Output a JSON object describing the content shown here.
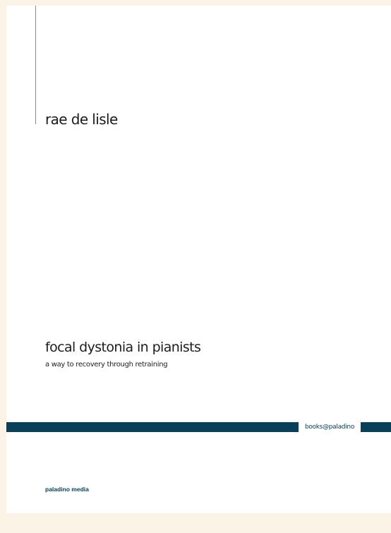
{
  "cover": {
    "author": "rae de lisle",
    "title": "focal dystonia in pianists",
    "subtitle": "a way to recovery through retraining",
    "band_label": "books@paladino",
    "publisher": "paladino media"
  },
  "colors": {
    "background": "#fbf3e5",
    "page": "#ffffff",
    "accent": "#08405a",
    "text": "#1c1c1c"
  }
}
